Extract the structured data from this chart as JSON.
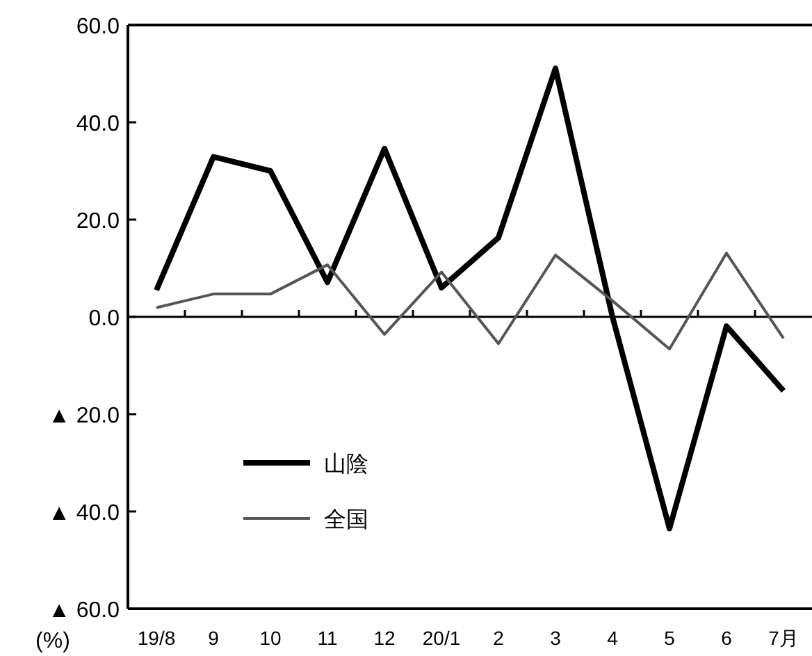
{
  "chart_data": {
    "type": "line",
    "ylabel": "(%)",
    "categories": [
      "19/8",
      "9",
      "10",
      "11",
      "12",
      "20/1",
      "2",
      "3",
      "4",
      "5",
      "6",
      "7月"
    ],
    "series": [
      {
        "name": "山陰",
        "color": "#000000",
        "values": [
          5.5,
          32.9,
          30.0,
          7.1,
          34.6,
          6.0,
          16.3,
          51.1,
          0,
          -43.5,
          -1.9,
          -15.2
        ]
      },
      {
        "name": "全国",
        "color": "#555555",
        "values": [
          1.9,
          4.7,
          4.7,
          10.7,
          -3.6,
          9.2,
          -5.5,
          12.7,
          3.3,
          -6.6,
          13.1,
          -4.4
        ]
      }
    ],
    "ylim": [
      -60,
      60
    ],
    "yticks": [
      {
        "value": -60,
        "label": "▲ 60.0"
      },
      {
        "value": -40,
        "label": "▲ 40.0"
      },
      {
        "value": -20,
        "label": "▲ 20.0"
      },
      {
        "value": 0,
        "label": "0.0"
      },
      {
        "value": 20,
        "label": "20.0"
      },
      {
        "value": 40,
        "label": "40.0"
      },
      {
        "value": 60,
        "label": "60.0"
      }
    ],
    "ref_lines": [
      {
        "axis": "y",
        "value": 0,
        "color": "#000000"
      }
    ],
    "legend": "bottom left",
    "marker": "none",
    "line_style": "solid"
  }
}
